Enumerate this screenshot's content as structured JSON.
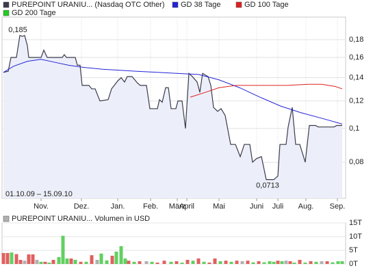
{
  "chart_data": [
    {
      "type": "line",
      "log_scale": true,
      "grid": true,
      "series": [
        {
          "name": "PUREPOINT URANIU... (Nasdaq OTC Other)",
          "color": "#3a3a4a",
          "x": [
            0,
            7,
            11,
            19,
            24,
            28,
            31,
            35,
            37,
            55,
            59,
            64,
            86,
            89,
            92,
            105,
            108,
            112,
            115,
            125,
            129,
            134,
            141,
            153,
            158,
            167,
            172,
            177,
            181,
            188,
            196,
            200,
            209,
            214,
            225,
            228,
            232,
            237,
            241,
            245,
            252,
            255,
            261,
            266,
            271,
            276,
            283,
            287,
            291,
            299,
            303,
            307,
            313,
            318,
            324,
            332,
            339,
            346,
            352,
            360,
            364,
            370,
            377,
            384,
            395,
            401,
            404,
            413,
            416,
            422,
            427,
            433,
            441,
            447,
            456,
            460,
            483,
            487,
            492,
            495
          ],
          "values": [
            0.145,
            0.146,
            0.16,
            0.16,
            0.185,
            0.184,
            0.185,
            0.173,
            0.16,
            0.16,
            0.168,
            0.16,
            0.16,
            0.163,
            0.16,
            0.16,
            0.152,
            0.152,
            0.133,
            0.133,
            0.13,
            0.13,
            0.12,
            0.121,
            0.13,
            0.137,
            0.14,
            0.136,
            0.141,
            0.141,
            0.135,
            0.133,
            0.133,
            0.114,
            0.114,
            0.121,
            0.119,
            0.131,
            0.131,
            0.114,
            0.114,
            0.12,
            0.12,
            0.1,
            0.144,
            0.141,
            0.136,
            0.127,
            0.144,
            0.141,
            0.133,
            0.115,
            0.112,
            0.114,
            0.109,
            0.09,
            0.09,
            0.083,
            0.09,
            0.09,
            0.08,
            0.082,
            0.083,
            0.0713,
            0.0713,
            0.073,
            0.09,
            0.09,
            0.101,
            0.115,
            0.09,
            0.09,
            0.08,
            0.102,
            0.102,
            0.101,
            0.101,
            0.102,
            0.102,
            0.102
          ]
        },
        {
          "name": "GD 38 Tage",
          "color": "#2323d8",
          "x": [
            0,
            15,
            35,
            55,
            75,
            95,
            115,
            145,
            195,
            225,
            255,
            285,
            315,
            345,
            375,
            405,
            435,
            465,
            495
          ],
          "values": [
            0.145,
            0.151,
            0.156,
            0.158,
            0.155,
            0.152,
            0.15,
            0.148,
            0.146,
            0.145,
            0.144,
            0.143,
            0.138,
            0.131,
            0.123,
            0.116,
            0.111,
            0.107,
            0.103
          ]
        },
        {
          "name": "GD 100 Tage",
          "color": "#dd2020",
          "x": [
            273,
            295,
            315,
            340,
            375,
            415,
            445,
            465,
            485,
            495
          ],
          "values": [
            0.123,
            0.127,
            0.131,
            0.133,
            0.133,
            0.133,
            0.134,
            0.134,
            0.132,
            0.13
          ]
        },
        {
          "name": "GD 200 Tage",
          "color": "#22cc22",
          "x": [],
          "values": []
        }
      ],
      "xlim": [
        0,
        500
      ],
      "xticks": [
        {
          "value": 55,
          "label": "Nov."
        },
        {
          "value": 114,
          "label": "Dez."
        },
        {
          "value": 167,
          "label": "Jan."
        },
        {
          "value": 215,
          "label": "Feb."
        },
        {
          "value": 254,
          "label": "März"
        },
        {
          "value": 268,
          "label": "April"
        },
        {
          "value": 315,
          "label": "Mai"
        },
        {
          "value": 370,
          "label": "Juni"
        },
        {
          "value": 401,
          "label": "Juli"
        },
        {
          "value": 442,
          "label": "Aug."
        },
        {
          "value": 488,
          "label": "Sep."
        }
      ],
      "ylim": [
        0.063,
        0.209
      ],
      "yticks": [
        {
          "value": 0.08,
          "label": "0,08"
        },
        {
          "value": 0.1,
          "label": "0,1"
        },
        {
          "value": 0.12,
          "label": "0,12"
        },
        {
          "value": 0.14,
          "label": "0,14"
        },
        {
          "value": 0.16,
          "label": "0,16"
        },
        {
          "value": 0.18,
          "label": "0,18"
        }
      ],
      "max_label": "0,185",
      "min_label": "0,0713",
      "date_range": "01.10.09 – 15.09.10"
    },
    {
      "type": "bar",
      "title": "PUREPOINT URANIU... Volumen in USD",
      "legend_color": "#b0b0b0",
      "x": [
        0,
        6,
        12,
        19,
        25,
        31,
        37,
        43,
        49,
        55,
        61,
        67,
        73,
        81,
        87,
        93,
        99,
        105,
        113,
        121,
        129,
        137,
        143,
        151,
        159,
        165,
        172,
        178,
        183,
        191,
        199,
        209,
        217,
        225,
        235,
        245,
        253,
        261,
        269,
        277,
        285,
        293,
        301,
        309,
        317,
        325,
        333,
        341,
        349,
        357,
        365,
        373,
        381,
        389,
        395,
        401,
        407,
        413,
        419,
        425,
        433,
        441,
        449,
        457,
        465,
        473,
        481,
        489,
        495
      ],
      "values": [
        4,
        4,
        4.2,
        3.6,
        1.5,
        1.2,
        3.5,
        3.5,
        1.5,
        0.8,
        0.8,
        0.5,
        1.5,
        2.5,
        10.3,
        2,
        2,
        1.5,
        0.8,
        0.8,
        3.2,
        1.5,
        3.8,
        1.3,
        3,
        4.5,
        6.5,
        2,
        1.2,
        0.8,
        1,
        1,
        0.8,
        0.5,
        1.2,
        0.8,
        1,
        0.5,
        1.5,
        1.2,
        2,
        0.8,
        0.5,
        2,
        1,
        1.2,
        0.8,
        1.2,
        1,
        1.2,
        0.6,
        1,
        0.6,
        1,
        0.8,
        1.2,
        1,
        1.2,
        1,
        0.5,
        1.5,
        0.5,
        1,
        0.8,
        1,
        1,
        0.6,
        1,
        1
      ],
      "colors": [
        "#e06060",
        "#e06060",
        "#60d060",
        "#e06060",
        "#e06060",
        "#b0b0b0",
        "#e06060",
        "#e06060",
        "#b0b0b0",
        "#60d060",
        "#e06060",
        "#60d060",
        "#e06060",
        "#60d060",
        "#60d060",
        "#60d060",
        "#e06060",
        "#60d060",
        "#e06060",
        "#60d060",
        "#e06060",
        "#b0b0b0",
        "#60d060",
        "#60d060",
        "#e06060",
        "#60d060",
        "#60d060",
        "#60d060",
        "#e06060",
        "#60d060",
        "#e06060",
        "#b0b0b0",
        "#60d060",
        "#e06060",
        "#e06060",
        "#60d060",
        "#e06060",
        "#60d060",
        "#e06060",
        "#60d060",
        "#e06060",
        "#60d060",
        "#e06060",
        "#e06060",
        "#60d060",
        "#e06060",
        "#60d060",
        "#e06060",
        "#b0b0b0",
        "#e06060",
        "#60d060",
        "#e06060",
        "#60d060",
        "#60d060",
        "#60d060",
        "#e06060",
        "#60d060",
        "#b0b0b0",
        "#e06060",
        "#60d060",
        "#e06060",
        "#60d060",
        "#e06060",
        "#60d060",
        "#b0b0b0",
        "#e06060",
        "#60d060",
        "#60d060",
        "#60d060"
      ],
      "xlim": [
        0,
        500
      ],
      "ylim": [
        0,
        15
      ],
      "yticks": [
        {
          "value": 0,
          "label": "0T"
        },
        {
          "value": 5,
          "label": "5T"
        },
        {
          "value": 10,
          "label": "10T"
        },
        {
          "value": 15,
          "label": "15T"
        }
      ]
    }
  ]
}
